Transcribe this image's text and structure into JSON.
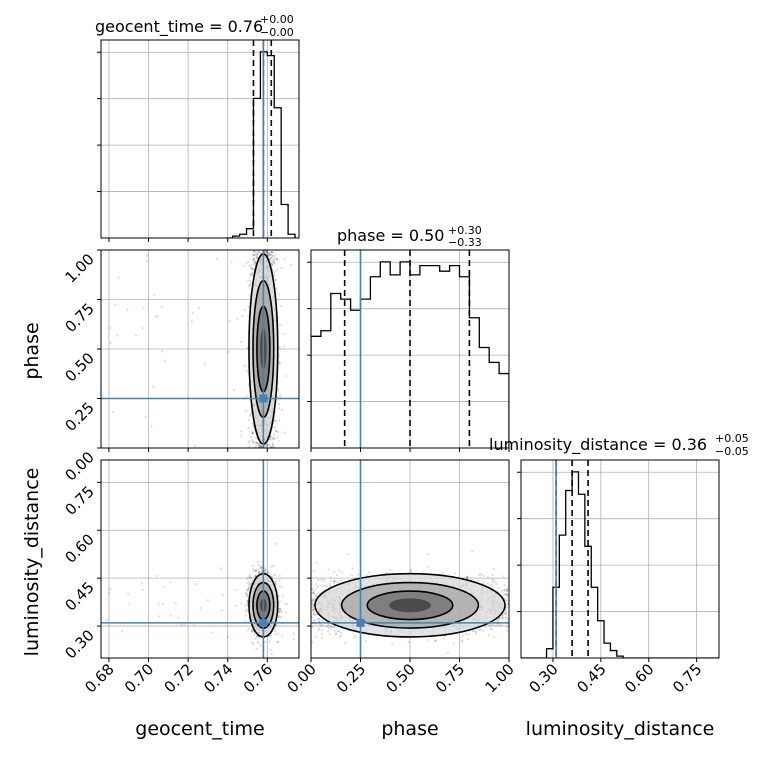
{
  "chart_data": {
    "type": "corner",
    "parameters": [
      "geocent_time",
      "phase",
      "luminosity_distance"
    ],
    "truths": {
      "geocent_time": 0.758,
      "phase": 0.25,
      "luminosity_distance": 0.31
    },
    "truth_color": "#4682b4",
    "grid": true,
    "titles": {
      "geocent_time": {
        "label": "geocent_time = 0.76",
        "plus": "+0.00",
        "minus": "−0.00"
      },
      "phase": {
        "label": "phase = 0.50",
        "plus": "+0.30",
        "minus": "−0.33"
      },
      "luminosity_distance": {
        "label": "luminosity_distance = 0.36",
        "plus": "+0.05",
        "minus": "−0.05"
      }
    },
    "axes": {
      "geocent_time": {
        "range": [
          0.676,
          0.776
        ],
        "ticks": [
          0.68,
          0.7,
          0.72,
          0.74,
          0.76
        ],
        "tick_labels": [
          "0.68",
          "0.70",
          "0.72",
          "0.74",
          "0.76"
        ]
      },
      "phase": {
        "range": [
          0.0,
          1.0
        ],
        "ticks": [
          0.0,
          0.25,
          0.5,
          0.75,
          1.0
        ],
        "tick_labels": [
          "0.00",
          "0.25",
          "0.50",
          "0.75",
          "1.00"
        ]
      },
      "luminosity_distance": {
        "range": [
          0.2,
          0.82
        ],
        "ticks": [
          0.3,
          0.45,
          0.6,
          0.75
        ],
        "tick_labels": [
          "0.30",
          "0.45",
          "0.60",
          "0.75"
        ]
      }
    },
    "diagonal": {
      "geocent_time": {
        "bin_edges": [
          0.739,
          0.7425,
          0.746,
          0.7495,
          0.753,
          0.7565,
          0.76,
          0.7635,
          0.767,
          0.7705,
          0.774
        ],
        "counts": [
          0.0,
          0.01,
          0.02,
          0.05,
          0.75,
          1.0,
          0.98,
          0.7,
          0.18,
          0.02
        ],
        "quantiles": [
          0.753,
          0.758,
          0.762
        ]
      },
      "phase": {
        "bin_edges": [
          0.0,
          0.05,
          0.1,
          0.15,
          0.2,
          0.25,
          0.3,
          0.35,
          0.4,
          0.45,
          0.5,
          0.55,
          0.6,
          0.65,
          0.7,
          0.75,
          0.8,
          0.85,
          0.9,
          0.95,
          1.0
        ],
        "counts": [
          0.6,
          0.63,
          0.83,
          0.8,
          0.74,
          0.8,
          0.92,
          1.0,
          0.93,
          1.0,
          0.93,
          0.98,
          0.98,
          0.95,
          0.98,
          0.92,
          0.7,
          0.54,
          0.46,
          0.4
        ],
        "quantiles": [
          0.17,
          0.5,
          0.8
        ]
      },
      "luminosity_distance": {
        "bin_edges": [
          0.2,
          0.22,
          0.24,
          0.26,
          0.28,
          0.3,
          0.32,
          0.34,
          0.36,
          0.38,
          0.4,
          0.42,
          0.44,
          0.46,
          0.48,
          0.5,
          0.52,
          0.54,
          0.82
        ],
        "counts": [
          0.0,
          0.0,
          0.0,
          0.0,
          0.05,
          0.38,
          0.66,
          0.9,
          1.0,
          0.88,
          0.6,
          0.38,
          0.2,
          0.08,
          0.04,
          0.01,
          0.0,
          0.0
        ],
        "quantiles": [
          0.31,
          0.36,
          0.41
        ]
      }
    },
    "pairs": [
      {
        "x": "geocent_time",
        "y": "phase"
      },
      {
        "x": "geocent_time",
        "y": "luminosity_distance"
      },
      {
        "x": "phase",
        "y": "luminosity_distance"
      }
    ]
  }
}
